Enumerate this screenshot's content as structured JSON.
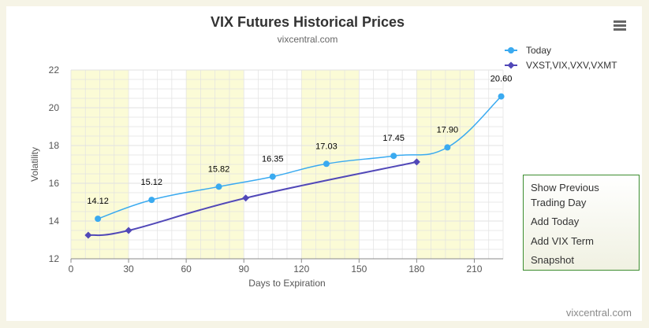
{
  "chart_data": {
    "type": "line",
    "title": "VIX Futures Historical Prices",
    "subtitle": "vixcentral.com",
    "xlabel": "Days to Expiration",
    "ylabel": "Volatility",
    "xlim": [
      0,
      225
    ],
    "ylim": [
      12,
      22
    ],
    "x_ticks": [
      0,
      30,
      60,
      90,
      120,
      150,
      180,
      210
    ],
    "y_ticks": [
      12,
      14,
      16,
      18,
      20,
      22
    ],
    "grid": true,
    "legend_position": "top-right",
    "series": [
      {
        "name": "Today",
        "color": "#3aaaf0",
        "marker": "circle",
        "x": [
          14,
          42,
          77,
          105,
          133,
          168,
          196,
          224
        ],
        "y": [
          14.12,
          15.12,
          15.82,
          16.35,
          17.03,
          17.45,
          17.9,
          20.6
        ],
        "labels": [
          "14.12",
          "15.12",
          "15.82",
          "16.35",
          "17.03",
          "17.45",
          "17.90",
          "20.60"
        ]
      },
      {
        "name": "VXST,VIX,VXV,VXMT",
        "color": "#5148b8",
        "marker": "diamond",
        "x": [
          9,
          30,
          91,
          180
        ],
        "y": [
          13.25,
          13.5,
          15.22,
          17.13
        ]
      }
    ]
  },
  "menu": {
    "icon": "hamburger-menu-icon"
  },
  "side_panel": {
    "show_previous_line1": "Show Previous",
    "show_previous_line2": "Trading Day",
    "add_today": "Add Today",
    "add_vix_term_line1": "Add VIX Term",
    "add_vix_term_line2": "Snapshot",
    "border_color": "#3c8d2f"
  },
  "credit": "vixcentral.com",
  "colors": {
    "band": "#fbfbd6",
    "grid": "#e2e2e2",
    "page_background": "#f6f4e6"
  }
}
